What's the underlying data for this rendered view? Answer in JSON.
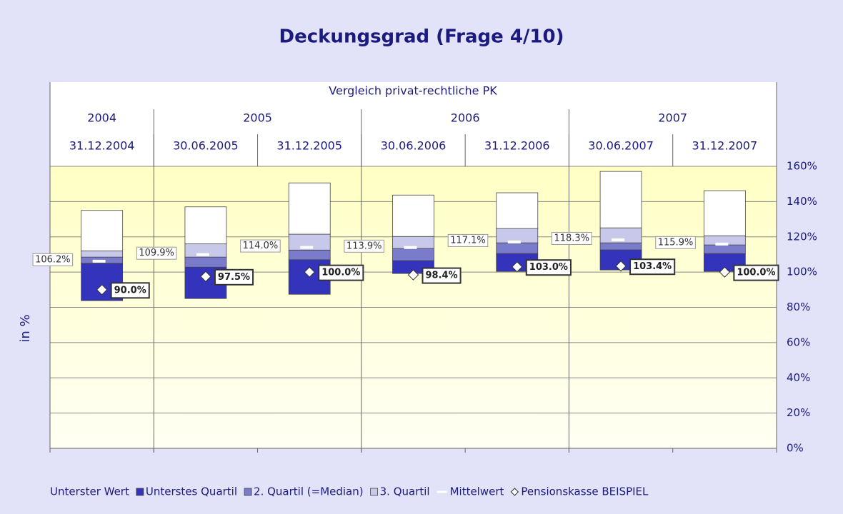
{
  "chart_data": {
    "type": "floating-box",
    "title": "Deckungsgrad (Frage 4/10)",
    "subtitle": "Vergleich privat-rechtliche PK",
    "ylabel": "in %",
    "years": [
      "2004",
      "2005",
      "2006",
      "2007"
    ],
    "categories": [
      "31.12.2004",
      "30.06.2005",
      "31.12.2005",
      "30.06.2006",
      "31.12.2006",
      "30.06.2007",
      "31.12.2007"
    ],
    "series": [
      {
        "name": "Unterster Wert",
        "color": "none",
        "values": [
          83.8,
          85,
          87.4,
          99.2,
          100.4,
          101.2,
          100.4
        ]
      },
      {
        "name": "Unterstes Quartil",
        "color": "#3333bb",
        "values": [
          21.2,
          17.8,
          19.6,
          7.3,
          10.1,
          11.4,
          10.1
        ]
      },
      {
        "name": "2. Quartil (=Median)",
        "color": "#7b7bcc",
        "values": [
          3.5,
          5.7,
          5.5,
          6.9,
          6.1,
          4,
          4.9
        ]
      },
      {
        "name": "3. Quartil",
        "color": "#c8c8ea",
        "values": [
          3.5,
          7.5,
          9,
          6.8,
          8.1,
          8.5,
          5.2
        ]
      },
      {
        "color": "#ffffff",
        "values": [
          23,
          21,
          29.1,
          23.5,
          20.3,
          32,
          25.6
        ]
      }
    ],
    "mean": {
      "name": "Mittelwert",
      "color": "#ffffff",
      "values": [
        106.2,
        109.9,
        114,
        113.9,
        117.1,
        118.3,
        115.9
      ],
      "value_labels": [
        "106.2%",
        "109.9%",
        "114.0%",
        "113.9%",
        "117.1%",
        "118.3%",
        "115.9%"
      ]
    },
    "marker": {
      "name": "Pensionskasse BEISPIEL",
      "color": "#ffffff",
      "values": [
        90,
        97.5,
        100,
        98.4,
        103,
        103.4,
        100
      ],
      "value_labels": [
        "90.0%",
        "97.5%",
        "100.0%",
        "98.4%",
        "103.0%",
        "103.4%",
        "100.0%"
      ]
    },
    "ylim": [
      0,
      160
    ],
    "yticks": [
      {
        "value": 0,
        "label": "0%"
      },
      {
        "value": 20,
        "label": "20%"
      },
      {
        "value": 40,
        "label": "40%"
      },
      {
        "value": 60,
        "label": "60%"
      },
      {
        "value": 80,
        "label": "80%"
      },
      {
        "value": 100,
        "label": "100%"
      },
      {
        "value": 120,
        "label": "120%"
      },
      {
        "value": 140,
        "label": "140%"
      },
      {
        "value": 160,
        "label": "160%"
      }
    ],
    "grid": true
  }
}
